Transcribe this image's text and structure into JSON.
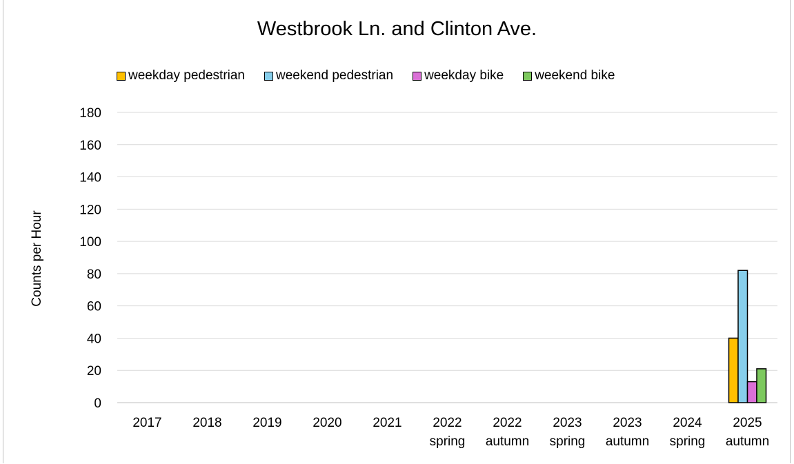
{
  "chart_data": {
    "type": "bar",
    "title": "Westbrook Ln. and Clinton Ave.",
    "xlabel": "",
    "ylabel": "Counts per Hour",
    "ylim": [
      0,
      180
    ],
    "yticks": [
      0,
      20,
      40,
      60,
      80,
      100,
      120,
      140,
      160,
      180
    ],
    "grid": true,
    "legend_position": "top",
    "categories": [
      [
        "2017"
      ],
      [
        "2018"
      ],
      [
        "2019"
      ],
      [
        "2020"
      ],
      [
        "2021"
      ],
      [
        "2022",
        "spring"
      ],
      [
        "2022",
        "autumn"
      ],
      [
        "2023",
        "spring"
      ],
      [
        "2023",
        "autumn"
      ],
      [
        "2024",
        "spring"
      ],
      [
        "2025",
        "autumn"
      ]
    ],
    "series": [
      {
        "name": "weekday pedestrian",
        "color": "#FFC000",
        "values": [
          null,
          null,
          null,
          null,
          null,
          null,
          null,
          null,
          null,
          null,
          40
        ]
      },
      {
        "name": "weekend pedestrian",
        "color": "#87CEEB",
        "values": [
          null,
          null,
          null,
          null,
          null,
          null,
          null,
          null,
          null,
          null,
          82
        ]
      },
      {
        "name": "weekday bike",
        "color": "#DA70D6",
        "values": [
          null,
          null,
          null,
          null,
          null,
          null,
          null,
          null,
          null,
          null,
          13
        ]
      },
      {
        "name": "weekend bike",
        "color": "#7DC95E",
        "values": [
          null,
          null,
          null,
          null,
          null,
          null,
          null,
          null,
          null,
          null,
          21
        ]
      }
    ]
  }
}
